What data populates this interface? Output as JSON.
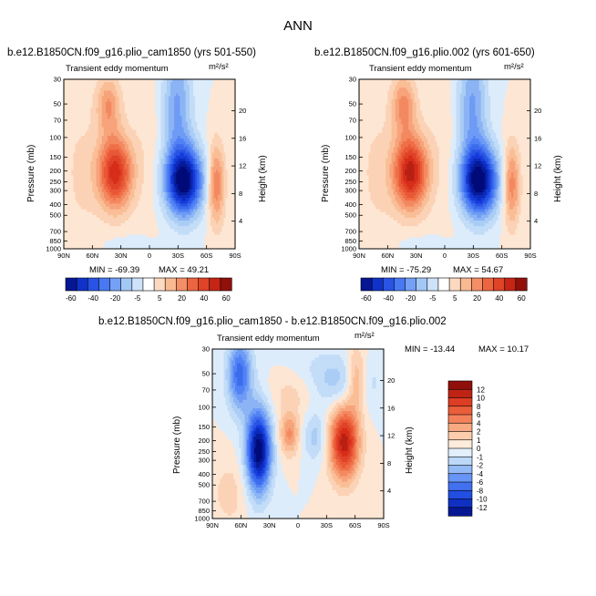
{
  "title": "ANN",
  "colors": {
    "blue_dark": "#001f8f",
    "blue_mid": "#2a5cf0",
    "blue_light": "#a9c9f6",
    "white": "#ffffff",
    "orange_light": "#fbd0b0",
    "orange_mid": "#f0703a",
    "red_dark": "#8b0a0a"
  },
  "chart_data": [
    {
      "type": "heatmap",
      "title": "b.e12.B1850CN.f09_g16.plio_cam1850 (yrs 501-550)",
      "subtitle": "Transient eddy momentum",
      "units": "m²/s²",
      "xlabel": "",
      "ylabel": "Pressure (mb)",
      "ylabel_right": "Height (km)",
      "x_ticks": [
        "90N",
        "60N",
        "30N",
        "0",
        "30S",
        "60S",
        "90S"
      ],
      "y_ticks": [
        "30",
        "50",
        "70",
        "100",
        "150",
        "200",
        "250",
        "300",
        "400",
        "500",
        "700",
        "850",
        "1000"
      ],
      "height_ticks": [
        "20",
        "16",
        "12",
        "8",
        "4"
      ],
      "min_label": "MIN = -69.39",
      "max_label": "MAX = 49.21",
      "min": -69.39,
      "max": 49.21,
      "colorbar_labels": [
        "-60",
        "-40",
        "-20",
        "-5",
        "5",
        "20",
        "40",
        "60"
      ],
      "features": [
        {
          "name": "NH positive jet maximum",
          "lat": "35N",
          "pressure_mb": 200,
          "value": 49
        },
        {
          "name": "SH negative maximum",
          "lat": "35S",
          "pressure_mb": 250,
          "value": -69
        },
        {
          "name": "SH positive lobe",
          "lat": "65S",
          "pressure_mb": 300,
          "value": 25
        }
      ]
    },
    {
      "type": "heatmap",
      "title": "b.e12.B1850CN.f09_g16.plio.002 (yrs 601-650)",
      "subtitle": "Transient eddy momentum",
      "units": "m²/s²",
      "xlabel": "",
      "ylabel": "Pressure (mb)",
      "ylabel_right": "Height (km)",
      "x_ticks": [
        "90N",
        "60N",
        "30N",
        "0",
        "30S",
        "60S",
        "90S"
      ],
      "y_ticks": [
        "30",
        "50",
        "70",
        "100",
        "150",
        "200",
        "250",
        "300",
        "400",
        "500",
        "700",
        "850",
        "1000"
      ],
      "height_ticks": [
        "20",
        "16",
        "12",
        "8",
        "4"
      ],
      "min_label": "MIN = -75.29",
      "max_label": "MAX = 54.67",
      "min": -75.29,
      "max": 54.67,
      "colorbar_labels": [
        "-60",
        "-40",
        "-20",
        "-5",
        "5",
        "20",
        "40",
        "60"
      ],
      "features": [
        {
          "name": "NH positive jet maximum",
          "lat": "35N",
          "pressure_mb": 200,
          "value": 54
        },
        {
          "name": "SH negative maximum",
          "lat": "35S",
          "pressure_mb": 250,
          "value": -75
        },
        {
          "name": "SH positive lobe",
          "lat": "65S",
          "pressure_mb": 300,
          "value": 25
        }
      ]
    },
    {
      "type": "heatmap",
      "title": "b.e12.B1850CN.f09_g16.plio_cam1850 - b.e12.B1850CN.f09_g16.plio.002",
      "subtitle": "Transient eddy momentum",
      "units": "m²/s²",
      "xlabel": "",
      "ylabel": "Pressure (mb)",
      "ylabel_right": "Height (km)",
      "x_ticks": [
        "90N",
        "60N",
        "30N",
        "0",
        "30S",
        "60S",
        "90S"
      ],
      "y_ticks": [
        "30",
        "50",
        "70",
        "100",
        "150",
        "200",
        "250",
        "300",
        "400",
        "500",
        "700",
        "850",
        "1000"
      ],
      "height_ticks": [
        "20",
        "16",
        "12",
        "8",
        "4"
      ],
      "min_label": "MIN = -13.44",
      "max_label": "MAX = 10.17",
      "min": -13.44,
      "max": 10.17,
      "colorbar_labels": [
        "12",
        "10",
        "8",
        "6",
        "4",
        "2",
        "1",
        "0",
        "-1",
        "-2",
        "-4",
        "-6",
        "-8",
        "-10",
        "-12"
      ],
      "features": [
        {
          "name": "NH negative maximum",
          "lat": "45N",
          "pressure_mb": 250,
          "value": -13
        },
        {
          "name": "SH positive maximum",
          "lat": "50S",
          "pressure_mb": 200,
          "value": 10
        },
        {
          "name": "tropical positive",
          "lat": "20N",
          "pressure_mb": 150,
          "value": 4
        }
      ]
    }
  ]
}
